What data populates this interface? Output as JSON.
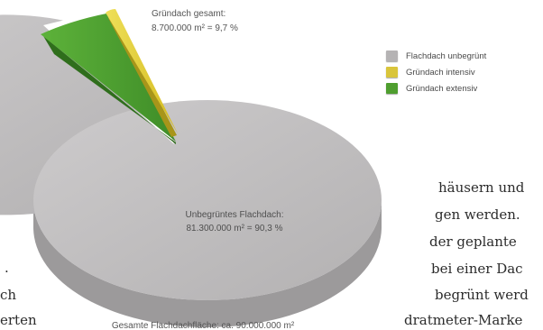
{
  "chart_data": {
    "type": "pie",
    "slices": [
      {
        "label": "Flachdach unbegrünt",
        "color": "#bdbbbc",
        "fraction": 0.903
      },
      {
        "label": "Gründach intensiv",
        "color": "#e2cf2c",
        "fraction": 0.022
      },
      {
        "label": "Gründach extensiv",
        "color": "#4f9e2f",
        "fraction": 0.075
      }
    ],
    "annotations": {
      "green_total_title": "Gründach gesamt:",
      "green_total_value": "8.700.000 m² = 9,7 %",
      "main_title": "Unbegrüntes Flachdach:",
      "main_value": "81.300.000 m² = 90,3 %",
      "total": "Gesamte Flachdachfläche: ca. 90.000.000 m²"
    },
    "legend": [
      {
        "label": "Flachdach unbegrünt",
        "color": "#b5b3b4"
      },
      {
        "label": "Gründach intensiv",
        "color": "#d9c53b"
      },
      {
        "label": "Gründach extensiv",
        "color": "#4f9e2f"
      }
    ],
    "legend_position": "top-right"
  },
  "background_text": [
    "häusern und",
    "gen werden.",
    "der geplante",
    "bei einer Dac",
    "begrünt werd",
    "dratmeter-Marke",
    ".",
    "ch",
    "erten"
  ]
}
